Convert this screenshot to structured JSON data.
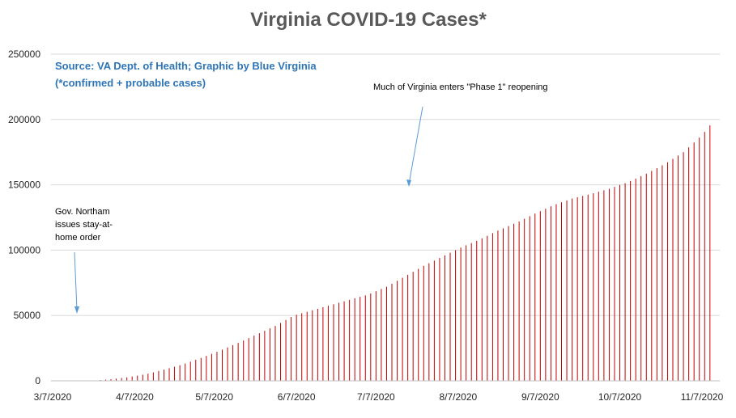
{
  "chart_data": {
    "type": "bar",
    "title": "Virginia COVID-19 Cases*",
    "xlabel": "",
    "ylabel": "",
    "ylim": [
      0,
      250000
    ],
    "y_ticks": [
      "0",
      "50000",
      "100000",
      "150000",
      "200000",
      "250000"
    ],
    "x_tick_labels": [
      "3/7/2020",
      "4/7/2020",
      "5/7/2020",
      "6/7/2020",
      "7/7/2020",
      "8/7/2020",
      "9/7/2020",
      "10/7/2020",
      "11/7/2020"
    ],
    "grid": true,
    "legend": "none",
    "bar_color": "#c00000",
    "x_start": "3/7/2020",
    "x_end": "11/11/2020",
    "series": [
      {
        "x": [
          "3/7/2020",
          "3/14/2020",
          "3/21/2020",
          "3/28/2020",
          "4/4/2020",
          "4/11/2020",
          "4/18/2020",
          "4/25/2020",
          "5/2/2020",
          "5/9/2020",
          "5/16/2020",
          "5/23/2020",
          "5/30/2020",
          "6/6/2020",
          "6/13/2020",
          "6/20/2020",
          "6/27/2020",
          "7/4/2020",
          "7/11/2020",
          "7/18/2020",
          "7/25/2020",
          "8/1/2020",
          "8/8/2020",
          "8/15/2020",
          "8/22/2020",
          "8/29/2020",
          "9/5/2020",
          "9/12/2020",
          "9/19/2020",
          "9/26/2020",
          "10/3/2020",
          "10/10/2020",
          "10/17/2020",
          "10/24/2020",
          "10/31/2020",
          "11/7/2020",
          "11/11/2020"
        ],
        "values": [
          0,
          0,
          0,
          1000,
          2600,
          5000,
          8500,
          12500,
          17500,
          23000,
          29000,
          35500,
          42000,
          50000,
          54000,
          58000,
          62000,
          66000,
          72000,
          80000,
          88000,
          95000,
          102000,
          108000,
          115000,
          121000,
          128000,
          134500,
          139500,
          143000,
          147000,
          152000,
          158500,
          166000,
          175000,
          188000,
          198000
        ]
      }
    ]
  },
  "annotations": {
    "source_line1": "Source: VA Dept. of Health; Graphic by Blue Virginia",
    "source_line2": "(*confirmed + probable cases)",
    "stay_home_line1": "Gov. Northam",
    "stay_home_line2": "issues stay-at-",
    "stay_home_line3": "home order",
    "phase1": "Much of Virginia enters \"Phase 1\" reopening"
  },
  "colors": {
    "gridline": "#d9d9d9",
    "axis": "#bfbfbf",
    "arrow": "#5b9bd5"
  }
}
